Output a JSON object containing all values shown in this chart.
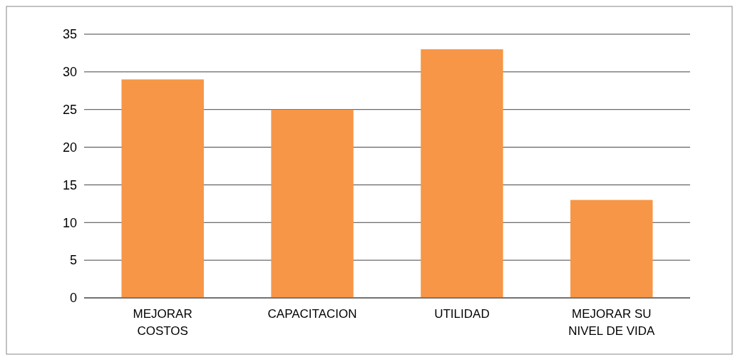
{
  "chart_data": {
    "type": "bar",
    "categories": [
      "MEJORAR COSTOS",
      "CAPACITACION",
      "UTILIDAD",
      "MEJORAR SU NIVEL DE VIDA"
    ],
    "values": [
      29,
      25,
      33,
      13
    ],
    "color": "#f79646",
    "ylim": [
      0,
      35
    ],
    "yticks": [
      0,
      5,
      10,
      15,
      20,
      25,
      30,
      35
    ],
    "grid": "y"
  }
}
